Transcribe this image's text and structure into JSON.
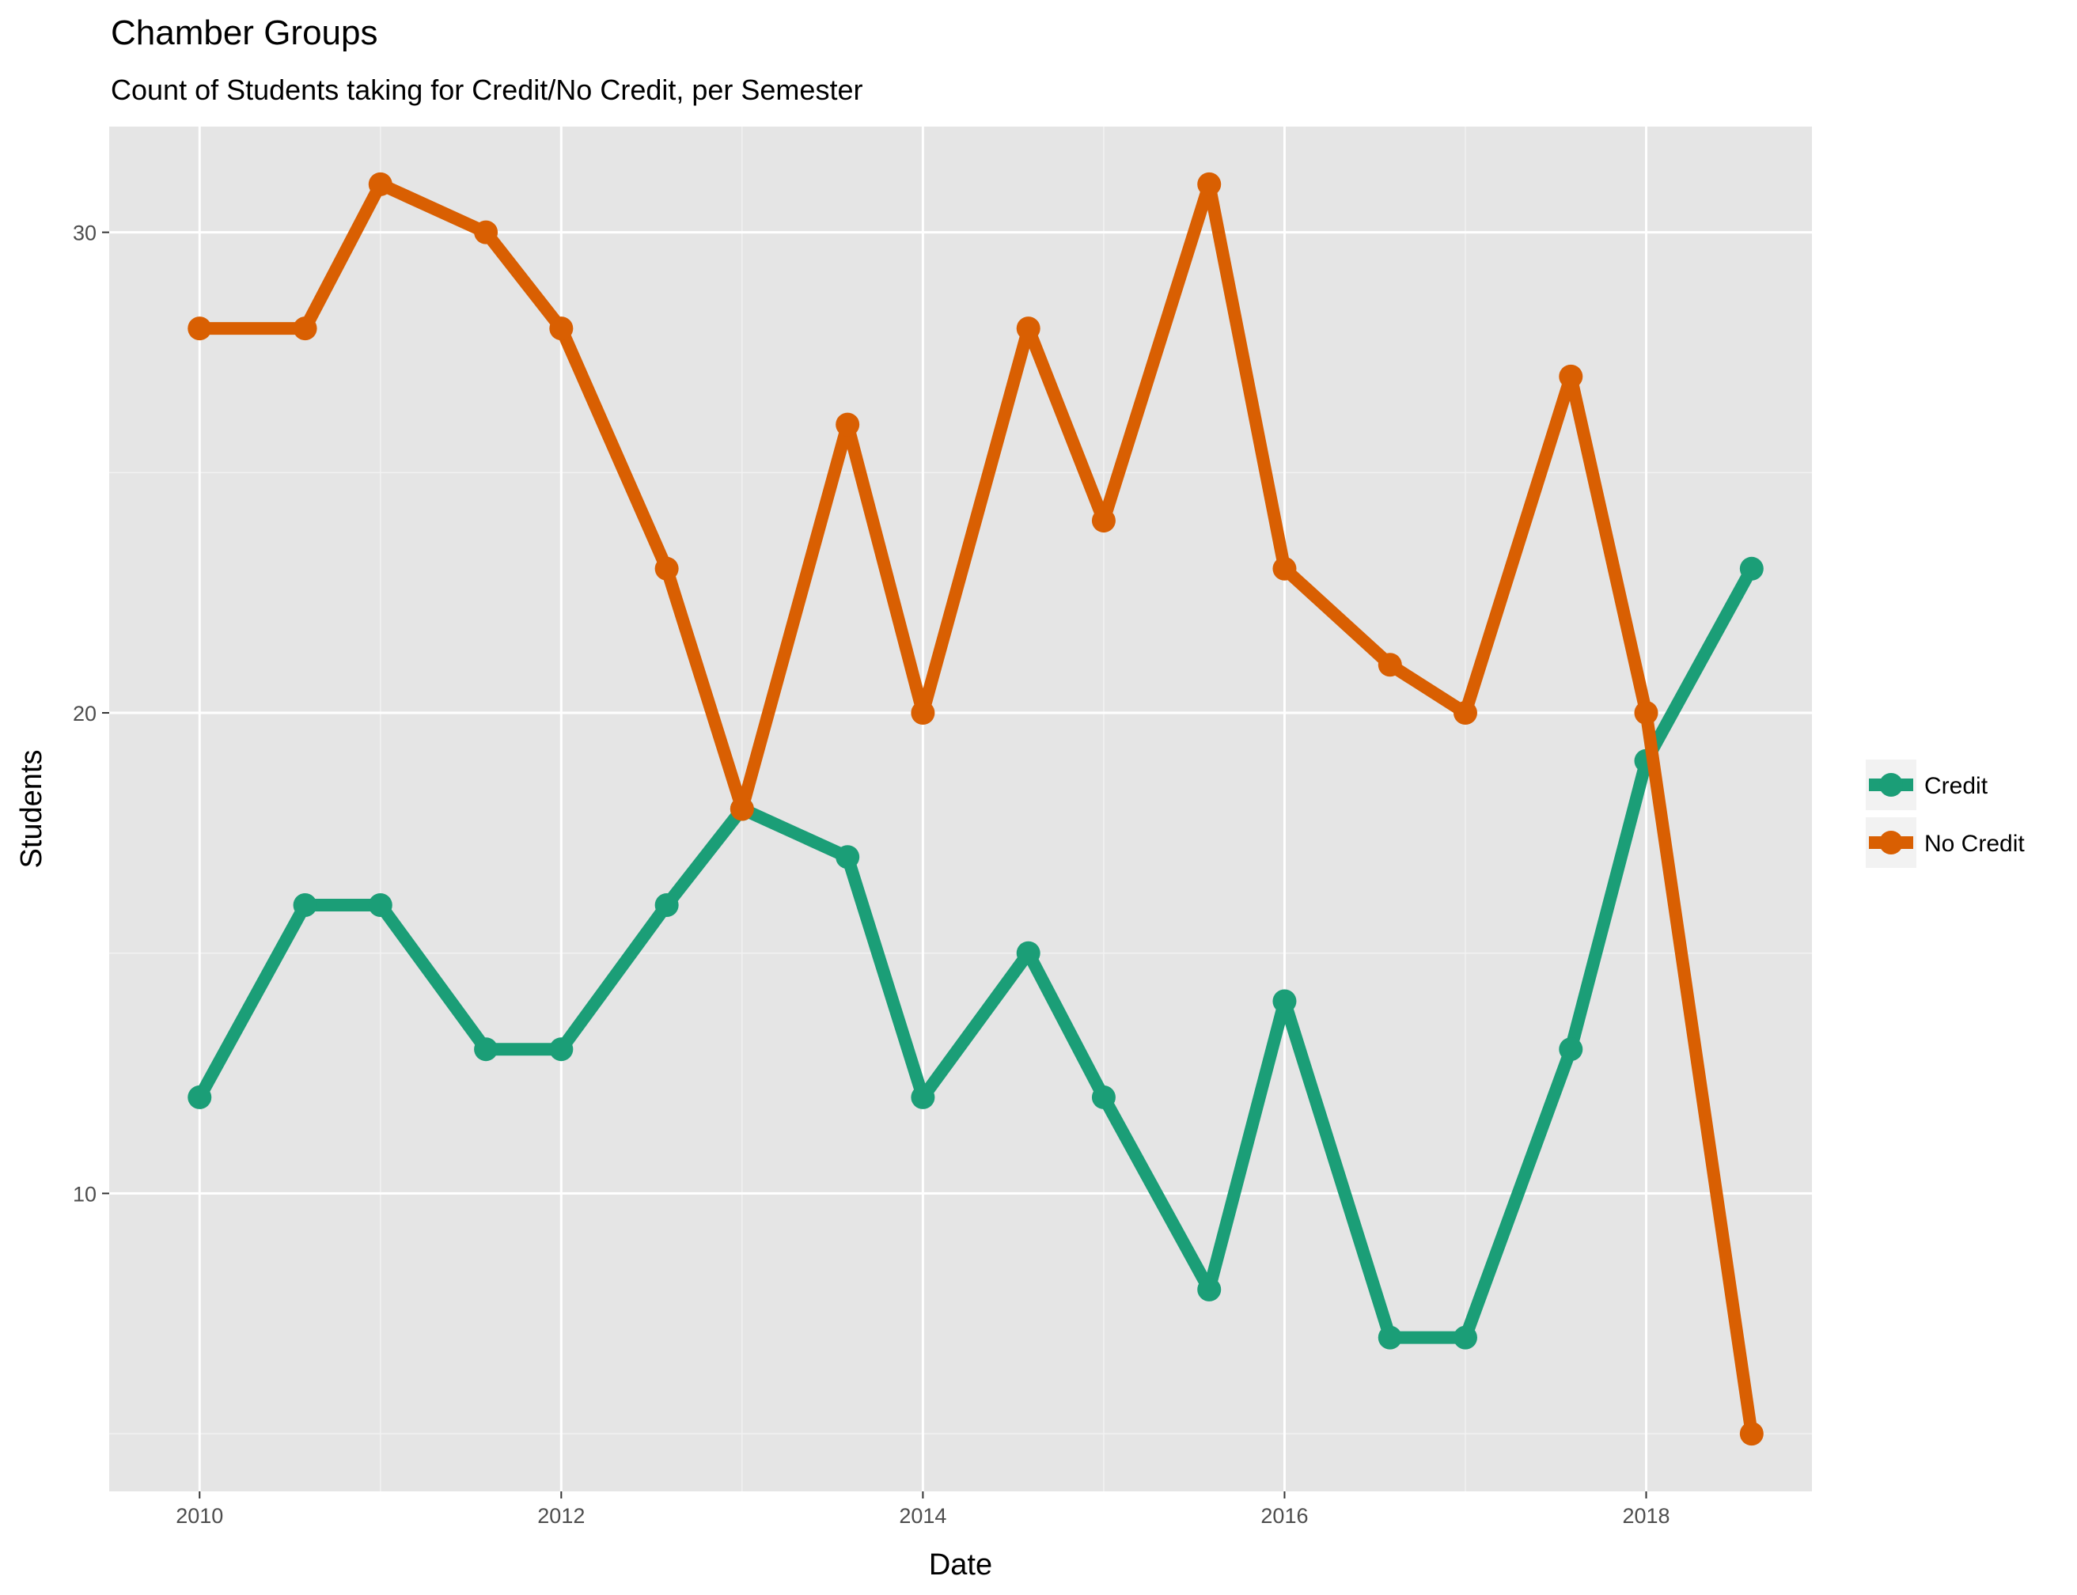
{
  "chart_data": {
    "type": "line",
    "title": "Chamber Groups",
    "subtitle": "Count of Students taking for Credit/No Credit, per Semester",
    "xlabel": "Date",
    "ylabel": "Students",
    "x": [
      "2010-01",
      "2010-08",
      "2011-01",
      "2011-08",
      "2012-01",
      "2012-08",
      "2013-01",
      "2013-08",
      "2014-01",
      "2014-08",
      "2015-01",
      "2015-08",
      "2016-01",
      "2016-08",
      "2017-01",
      "2017-08",
      "2018-01",
      "2018-08"
    ],
    "series": [
      {
        "name": "Credit",
        "color": "#1b9e77",
        "values": [
          12,
          16,
          16,
          13,
          13,
          16,
          18,
          17,
          12,
          15,
          12,
          8,
          14,
          7,
          7,
          13,
          19,
          23
        ]
      },
      {
        "name": "No Credit",
        "color": "#d95f02",
        "values": [
          28,
          28,
          31,
          30,
          28,
          23,
          18,
          26,
          20,
          28,
          24,
          31,
          23,
          21,
          20,
          27,
          20,
          5
        ]
      }
    ],
    "xticks": [
      "2010",
      "2012",
      "2014",
      "2016",
      "2018"
    ],
    "yticks": [
      10,
      20,
      30
    ],
    "xlim": [
      "2009-07",
      "2018-12"
    ],
    "ylim": [
      3.8,
      32.2
    ],
    "grid": true,
    "legend_position": "right"
  }
}
